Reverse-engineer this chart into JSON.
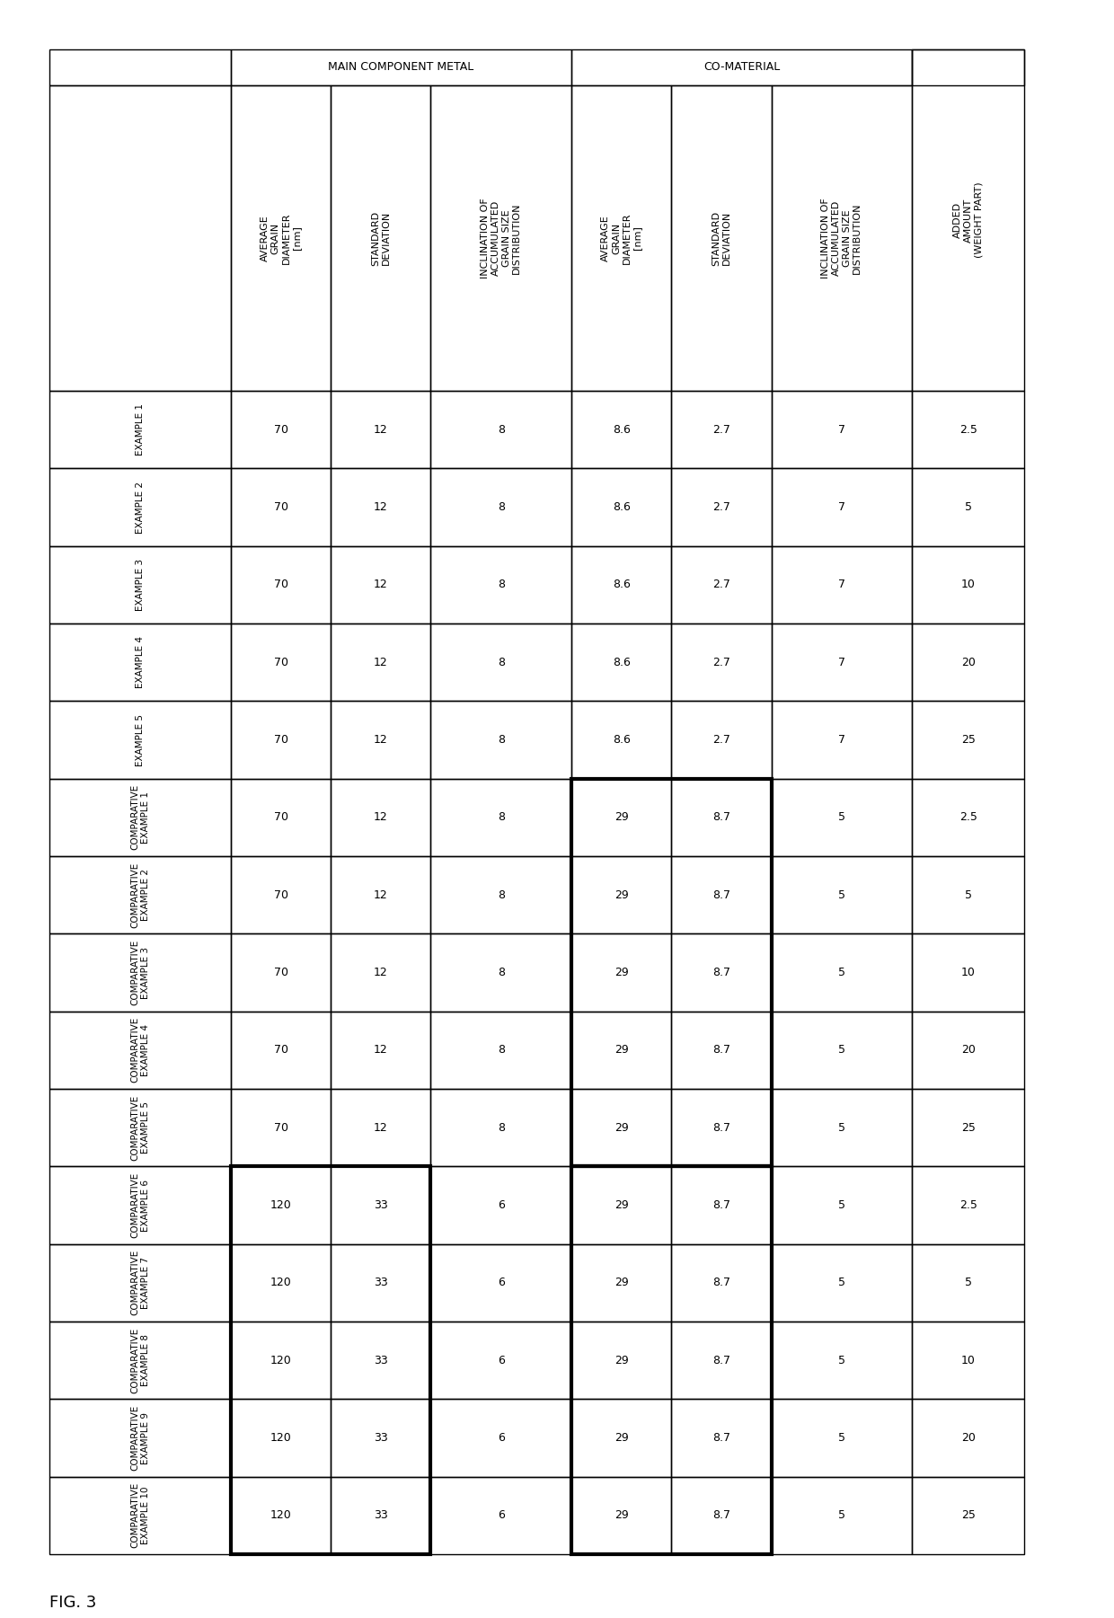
{
  "fig_label": "FIG. 3",
  "row_labels": [
    "EXAMPLE 1",
    "EXAMPLE 2",
    "EXAMPLE 3",
    "EXAMPLE 4",
    "EXAMPLE 5",
    "COMPARATIVE\nEXAMPLE 1",
    "COMPARATIVE\nEXAMPLE 2",
    "COMPARATIVE\nEXAMPLE 3",
    "COMPARATIVE\nEXAMPLE 4",
    "COMPARATIVE\nEXAMPLE 5",
    "COMPARATIVE\nEXAMPLE 6",
    "COMPARATIVE\nEXAMPLE 7",
    "COMPARATIVE\nEXAMPLE 8",
    "COMPARATIVE\nEXAMPLE 9",
    "COMPARATIVE\nEXAMPLE 10"
  ],
  "section_main": "MAIN COMPONENT METAL",
  "section_co": "CO-MATERIAL",
  "col_header_added": "ADDED\nAMOUNT\n(WEIGHT PART)",
  "main_subcols": [
    "AVERAGE\nGRAIN\nDIAMETER\n[nm]",
    "STANDARD\nDEVIATION",
    "INCLINATION OF\nACCUMULATED\nGRAIN SIZE\nDISTRIBUTION"
  ],
  "co_subcols": [
    "AVERAGE\nGRAIN\nDIAMETER\n[nm]",
    "STANDARD\nDEVIATION",
    "INCLINATION OF\nACCUMULATED\nGRAIN SIZE\nDISTRIBUTION"
  ],
  "data": [
    [
      70,
      12,
      8,
      8.6,
      2.7,
      7,
      2.5
    ],
    [
      70,
      12,
      8,
      8.6,
      2.7,
      7,
      5
    ],
    [
      70,
      12,
      8,
      8.6,
      2.7,
      7,
      10
    ],
    [
      70,
      12,
      8,
      8.6,
      2.7,
      7,
      20
    ],
    [
      70,
      12,
      8,
      8.6,
      2.7,
      7,
      25
    ],
    [
      70,
      12,
      8,
      29,
      8.7,
      5,
      2.5
    ],
    [
      70,
      12,
      8,
      29,
      8.7,
      5,
      5
    ],
    [
      70,
      12,
      8,
      29,
      8.7,
      5,
      10
    ],
    [
      70,
      12,
      8,
      29,
      8.7,
      5,
      20
    ],
    [
      70,
      12,
      8,
      29,
      8.7,
      5,
      25
    ],
    [
      120,
      33,
      6,
      29,
      8.7,
      5,
      2.5
    ],
    [
      120,
      33,
      6,
      29,
      8.7,
      5,
      5
    ],
    [
      120,
      33,
      6,
      29,
      8.7,
      5,
      10
    ],
    [
      120,
      33,
      6,
      29,
      8.7,
      5,
      20
    ],
    [
      120,
      33,
      6,
      29,
      8.7,
      5,
      25
    ]
  ],
  "background_color": "#ffffff"
}
